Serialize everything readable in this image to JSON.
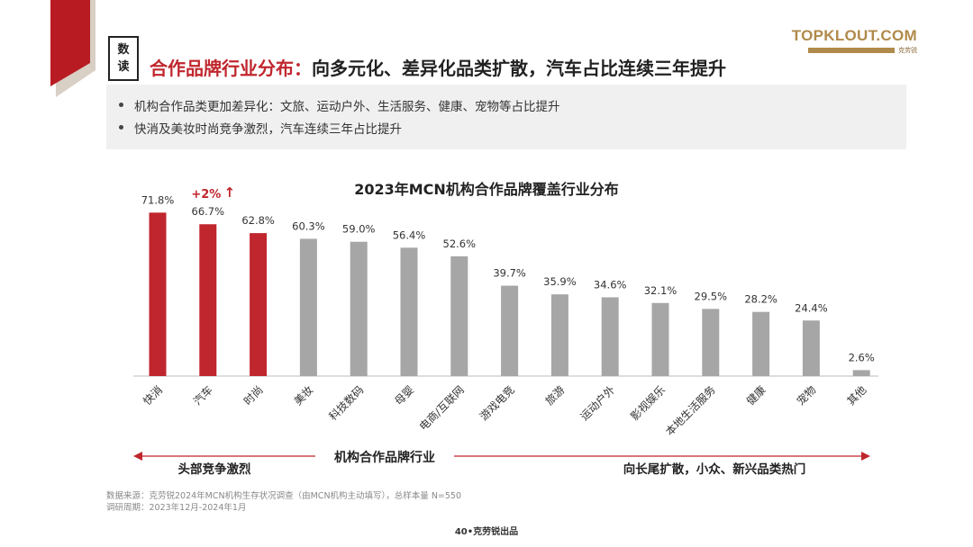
{
  "header": {
    "tag_top": "数",
    "tag_bottom": "读",
    "title_red": "合作品牌行业分布：",
    "title_black": "向多元化、差异化品类扩散，汽车占比连续三年提升"
  },
  "logo": {
    "text": "TOPKLOUT.COM",
    "sub_cn": "克劳锐"
  },
  "summary": [
    "机构合作品类更加差异化：文旅、运动户外、生活服务、健康、宠物等占比提升",
    "快消及美妆时尚竞争激烈，汽车连续三年占比提升"
  ],
  "chart_data": {
    "type": "bar",
    "title": "2023年MCN机构合作品牌覆盖行业分布",
    "unit": "%",
    "categories": [
      "快消",
      "汽车",
      "时尚",
      "美妆",
      "科技数码",
      "母婴",
      "电商/互联网",
      "游戏电竞",
      "旅游",
      "运动户外",
      "影视娱乐",
      "本地生活服务",
      "健康",
      "宠物",
      "其他"
    ],
    "values": [
      71.8,
      66.7,
      62.8,
      60.3,
      59.0,
      56.4,
      52.6,
      39.7,
      35.9,
      34.6,
      32.1,
      29.5,
      28.2,
      24.4,
      2.6
    ],
    "value_labels": [
      "71.8%",
      "66.7%",
      "62.8%",
      "60.3%",
      "59.0%",
      "56.4%",
      "52.6%",
      "39.7%",
      "35.9%",
      "34.6%",
      "32.1%",
      "29.5%",
      "28.2%",
      "24.4%",
      "2.6%"
    ],
    "highlight_count": 3,
    "highlight_color": "#c0262d",
    "base_color": "#a6a6a6",
    "annotation": {
      "category": "汽车",
      "text": "+2%",
      "arrow": "↑"
    },
    "ylim": [
      0,
      80
    ]
  },
  "bottom_bar": {
    "left": "头部竞争激烈",
    "center": "机构合作品牌行业",
    "right": "向长尾扩散，小众、新兴品类热门"
  },
  "footer": {
    "source": "数据来源：克劳锐2024年MCN机构生存状况调查（由MCN机构主动填写），总样本量 N=550",
    "period": "调研周期：2023年12月-2024年1月",
    "page": "40•克劳锐出品"
  }
}
